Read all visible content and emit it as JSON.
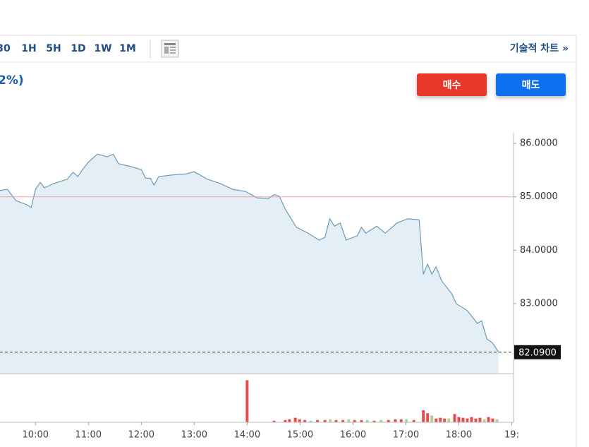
{
  "toolbar": {
    "intervals": [
      "30",
      "1H",
      "5H",
      "1D",
      "1W",
      "1M"
    ],
    "technical_chart": "기술적 차트 »"
  },
  "header": {
    "change_text": "2%)"
  },
  "buttons": {
    "buy": "매수",
    "sell": "매도"
  },
  "chart_data": {
    "type": "area",
    "series": [
      {
        "color": "#6a9bb7",
        "fill": "#e4eef6",
        "x": [
          9.33,
          9.47,
          9.63,
          9.84,
          9.92,
          10.0,
          10.09,
          10.17,
          10.35,
          10.6,
          10.71,
          10.8,
          10.89,
          11.0,
          11.17,
          11.36,
          11.47,
          11.57,
          11.79,
          12.0,
          12.08,
          12.17,
          12.24,
          12.33,
          12.59,
          12.85,
          13.0,
          13.25,
          13.49,
          13.73,
          13.97,
          14.19,
          14.4,
          14.51,
          14.61,
          14.72,
          14.93,
          15.15,
          15.36,
          15.47,
          15.56,
          15.65,
          15.76,
          15.87,
          16.08,
          16.16,
          16.24,
          16.45,
          16.61,
          16.83,
          17.04,
          17.25,
          17.33,
          17.41,
          17.49,
          17.57,
          17.68,
          17.87,
          17.95,
          18.16,
          18.35,
          18.43,
          18.53,
          18.64,
          18.75
        ],
        "values": [
          85.12,
          85.14,
          84.93,
          84.85,
          84.8,
          85.14,
          85.27,
          85.17,
          85.25,
          85.33,
          85.46,
          85.38,
          85.51,
          85.65,
          85.8,
          85.75,
          85.8,
          85.62,
          85.57,
          85.51,
          85.35,
          85.35,
          85.22,
          85.38,
          85.41,
          85.43,
          85.47,
          85.33,
          85.25,
          85.14,
          85.1,
          84.98,
          84.97,
          85.04,
          85.01,
          84.77,
          84.43,
          84.32,
          84.19,
          84.24,
          84.59,
          84.45,
          84.51,
          84.19,
          84.27,
          84.43,
          84.32,
          84.45,
          84.32,
          84.51,
          84.59,
          84.57,
          83.55,
          83.74,
          83.55,
          83.69,
          83.42,
          83.18,
          83.0,
          82.87,
          82.63,
          82.68,
          82.34,
          82.26,
          82.09
        ]
      }
    ],
    "reference_line": {
      "value": 85,
      "color": "#f0a0a0"
    },
    "last_value": {
      "value": 82.09,
      "label": "82.0900"
    },
    "xlim": [
      9.33,
      19.1
    ],
    "xticks": [
      {
        "value": 10,
        "label": "10:00"
      },
      {
        "value": 11,
        "label": "11:00"
      },
      {
        "value": 12,
        "label": "12:00"
      },
      {
        "value": 13,
        "label": "13:00"
      },
      {
        "value": 14,
        "label": "14:00"
      },
      {
        "value": 15,
        "label": "15:00"
      },
      {
        "value": 16,
        "label": "16:00"
      },
      {
        "value": 17,
        "label": "17:00"
      },
      {
        "value": 18,
        "label": "18:00"
      },
      {
        "value": 19,
        "label": "19:"
      }
    ],
    "ylim": [
      81.69,
      86.2
    ],
    "yticks": [
      {
        "value": 83,
        "label": "83.0000"
      },
      {
        "value": 84,
        "label": "84.0000"
      },
      {
        "value": 85,
        "label": "85.0000"
      },
      {
        "value": 86,
        "label": "86.0000"
      }
    ],
    "volume": {
      "vlim": [
        0,
        62
      ],
      "x": [
        14.0,
        14.51,
        14.72,
        14.8,
        14.91,
        14.99,
        15.09,
        15.2,
        15.33,
        15.47,
        15.57,
        15.68,
        15.81,
        15.92,
        16.03,
        16.16,
        16.27,
        16.4,
        16.53,
        16.67,
        16.8,
        16.91,
        17.01,
        17.15,
        17.33,
        17.41,
        17.49,
        17.57,
        17.65,
        17.73,
        17.81,
        17.92,
        18.0,
        18.08,
        18.16,
        18.24,
        18.32,
        18.4,
        18.48,
        18.56,
        18.64,
        18.72
      ],
      "values": [
        56,
        2,
        3,
        4,
        6,
        4,
        3,
        2,
        3,
        3,
        4,
        3,
        3,
        4,
        3,
        3,
        3,
        2,
        3,
        3,
        4,
        4,
        4,
        3,
        16,
        12,
        9,
        5,
        6,
        5,
        5,
        11,
        7,
        6,
        5,
        7,
        5,
        6,
        4,
        7,
        5,
        4
      ],
      "colors": [
        "#e05050",
        "#e05050",
        "#e05050",
        "#e05050",
        "#e05050",
        "#e05050",
        "#e05050",
        "#a8d0a0",
        "#e05050",
        "#e05050",
        "#a8d0a0",
        "#e05050",
        "#e05050",
        "#a8d0a0",
        "#e05050",
        "#e05050",
        "#a8d0a0",
        "#e05050",
        "#a8d0a0",
        "#e05050",
        "#e05050",
        "#e05050",
        "#a8d0a0",
        "#e05050",
        "#e05050",
        "#e05050",
        "#a8d0a0",
        "#e05050",
        "#e05050",
        "#e05050",
        "#a8d0a0",
        "#e05050",
        "#e05050",
        "#e05050",
        "#e05050",
        "#e05050",
        "#e05050",
        "#e05050",
        "#a8d0a0",
        "#e05050",
        "#e05050",
        "#a8d0a0"
      ]
    }
  }
}
